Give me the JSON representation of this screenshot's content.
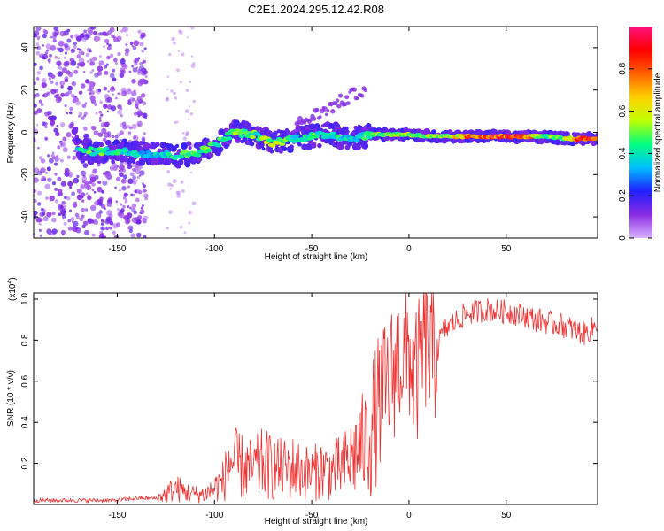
{
  "title": "C2E1.2024.295.12.42.R08",
  "chart_data": [
    {
      "type": "heatmap",
      "xlabel": "Height of straight line (km)",
      "ylabel": "Frequency (Hz)",
      "xlim": [
        -193,
        97
      ],
      "ylim": [
        -50,
        50
      ],
      "xticks": [
        -150,
        -100,
        -50,
        0,
        50
      ],
      "yticks": [
        -40,
        -20,
        0,
        20,
        40
      ],
      "colorbar": {
        "label": "Normalized spectral amplitude",
        "range": [
          0,
          1
        ],
        "ticks": [
          0,
          0.2,
          0.4,
          0.6,
          0.8
        ],
        "colormap": [
          "#d9b3ff",
          "#8a2be2",
          "#2020ff",
          "#00c0ff",
          "#00ff80",
          "#c0ff00",
          "#ffd000",
          "#ff6000",
          "#ff0000",
          "#ff1080"
        ]
      },
      "ridge": [
        {
          "x": -170,
          "y": -9,
          "amp": 0.45
        },
        {
          "x": -160,
          "y": -9,
          "amp": 0.5
        },
        {
          "x": -150,
          "y": -9,
          "amp": 0.45
        },
        {
          "x": -135,
          "y": -10,
          "amp": 0.4
        },
        {
          "x": -120,
          "y": -11,
          "amp": 0.45
        },
        {
          "x": -110,
          "y": -10,
          "amp": 0.55
        },
        {
          "x": -100,
          "y": -6,
          "amp": 0.5
        },
        {
          "x": -90,
          "y": 0,
          "amp": 0.55
        },
        {
          "x": -80,
          "y": -1,
          "amp": 0.5
        },
        {
          "x": -70,
          "y": -5,
          "amp": 0.6
        },
        {
          "x": -60,
          "y": -3,
          "amp": 0.45
        },
        {
          "x": -50,
          "y": -2,
          "amp": 0.5
        },
        {
          "x": -40,
          "y": -1,
          "amp": 0.45
        },
        {
          "x": -30,
          "y": -3,
          "amp": 0.4
        },
        {
          "x": -20,
          "y": -1,
          "amp": 0.5
        },
        {
          "x": -10,
          "y": -1,
          "amp": 0.6
        },
        {
          "x": 0,
          "y": -1,
          "amp": 0.6
        },
        {
          "x": 10,
          "y": -2,
          "amp": 0.55
        },
        {
          "x": 20,
          "y": -2,
          "amp": 0.6
        },
        {
          "x": 30,
          "y": -2,
          "amp": 0.8
        },
        {
          "x": 40,
          "y": -2,
          "amp": 0.9
        },
        {
          "x": 50,
          "y": -2,
          "amp": 0.95
        },
        {
          "x": 60,
          "y": -2,
          "amp": 0.85
        },
        {
          "x": 70,
          "y": -2,
          "amp": 0.5
        },
        {
          "x": 80,
          "y": -3,
          "amp": 0.6
        },
        {
          "x": 90,
          "y": -3,
          "amp": 0.95
        }
      ]
    },
    {
      "type": "line",
      "xlabel": "Height of straight line (km)",
      "ylabel": "SNR (10 * v/v)",
      "y_multiplier": "(x10",
      "y_multiplier_exp": "4",
      "y_multiplier_close": ")",
      "xlim": [
        -193,
        97
      ],
      "ylim": [
        0,
        1.03
      ],
      "xticks": [
        -150,
        -100,
        -50,
        0,
        50
      ],
      "yticks": [
        0.2,
        0.4,
        0.6,
        0.8,
        1.0
      ],
      "yticklabels": [
        "0.2",
        "0.4",
        "0.6",
        "0.8",
        "1.0"
      ],
      "color": "#ee3030",
      "x": [
        -193,
        -180,
        -170,
        -160,
        -150,
        -140,
        -130,
        -125,
        -120,
        -115,
        -110,
        -105,
        -100,
        -95,
        -92,
        -90,
        -85,
        -80,
        -75,
        -70,
        -65,
        -60,
        -55,
        -50,
        -45,
        -40,
        -35,
        -30,
        -25,
        -22,
        -20,
        -18,
        -15,
        -12,
        -10,
        -8,
        -5,
        -2,
        0,
        3,
        5,
        8,
        10,
        12,
        15,
        18,
        20,
        25,
        30,
        35,
        40,
        45,
        50,
        55,
        60,
        65,
        70,
        75,
        80,
        85,
        90,
        95,
        97
      ],
      "y": [
        0.02,
        0.02,
        0.02,
        0.02,
        0.02,
        0.03,
        0.03,
        0.05,
        0.08,
        0.06,
        0.05,
        0.05,
        0.08,
        0.12,
        0.22,
        0.2,
        0.18,
        0.17,
        0.2,
        0.18,
        0.17,
        0.18,
        0.16,
        0.15,
        0.17,
        0.16,
        0.18,
        0.22,
        0.28,
        0.3,
        0.35,
        0.4,
        0.5,
        0.55,
        0.6,
        0.65,
        0.72,
        0.7,
        0.75,
        0.6,
        0.65,
        0.8,
        0.75,
        0.7,
        0.78,
        0.85,
        0.86,
        0.9,
        0.93,
        0.94,
        0.95,
        0.94,
        0.94,
        0.93,
        0.92,
        0.9,
        0.89,
        0.88,
        0.87,
        0.85,
        0.83,
        0.86,
        0.9
      ]
    }
  ]
}
